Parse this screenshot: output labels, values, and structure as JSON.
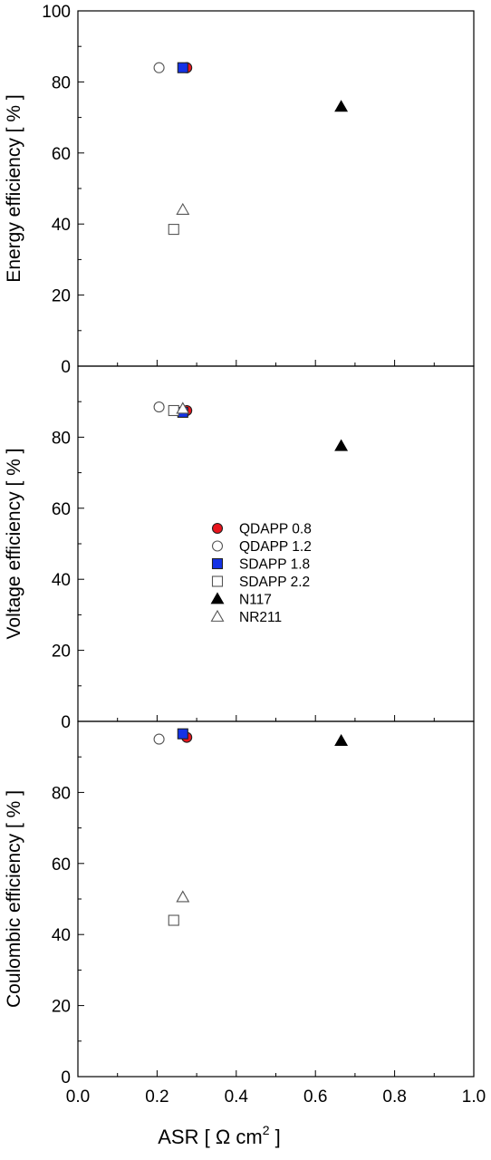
{
  "colors": {
    "qdapp08": "#e8141c",
    "sdapp18": "#1432e6",
    "black": "#000000",
    "hollow_stroke": "#555555"
  },
  "xaxis": {
    "label": "ASR [ Ω cm",
    "label_sup": "2",
    "label_end": " ]",
    "ticks": [
      "0.0",
      "0.2",
      "0.4",
      "0.6",
      "0.8",
      "1.0"
    ]
  },
  "legend": [
    {
      "name": "QDAPP 0.8",
      "marker": "circle",
      "filled": true,
      "color": "#e8141c"
    },
    {
      "name": "QDAPP 1.2",
      "marker": "circle",
      "filled": false,
      "color": "#555555"
    },
    {
      "name": "SDAPP 1.8",
      "marker": "square",
      "filled": true,
      "color": "#1432e6"
    },
    {
      "name": "SDAPP 2.2",
      "marker": "square",
      "filled": false,
      "color": "#555555"
    },
    {
      "name": "N117",
      "marker": "triangle",
      "filled": true,
      "color": "#000000"
    },
    {
      "name": "NR211",
      "marker": "triangle",
      "filled": false,
      "color": "#555555"
    }
  ],
  "chart_data": [
    {
      "type": "scatter",
      "ylabel": "Energy efficiency [ % ]",
      "xlim": [
        0,
        1.0
      ],
      "ylim": [
        0,
        100
      ],
      "yticks": [
        "0",
        "20",
        "40",
        "60",
        "80",
        "100"
      ],
      "series": [
        {
          "name": "QDAPP 0.8",
          "x": [
            0.275
          ],
          "y": [
            84
          ]
        },
        {
          "name": "QDAPP 1.2",
          "x": [
            0.205
          ],
          "y": [
            84
          ]
        },
        {
          "name": "SDAPP 1.8",
          "x": [
            0.265
          ],
          "y": [
            84
          ]
        },
        {
          "name": "SDAPP 2.2",
          "x": [
            0.242
          ],
          "y": [
            38.5
          ]
        },
        {
          "name": "N117",
          "x": [
            0.665
          ],
          "y": [
            73
          ]
        },
        {
          "name": "NR211",
          "x": [
            0.265
          ],
          "y": [
            44
          ]
        }
      ]
    },
    {
      "type": "scatter",
      "ylabel": "Voltage efficiency [ % ]",
      "xlim": [
        0,
        1.0
      ],
      "ylim": [
        0,
        100
      ],
      "yticks": [
        "0",
        "20",
        "40",
        "60",
        "80"
      ],
      "series": [
        {
          "name": "QDAPP 0.8",
          "x": [
            0.275
          ],
          "y": [
            87.5
          ]
        },
        {
          "name": "QDAPP 1.2",
          "x": [
            0.205
          ],
          "y": [
            88.5
          ]
        },
        {
          "name": "SDAPP 1.8",
          "x": [
            0.265
          ],
          "y": [
            87
          ]
        },
        {
          "name": "SDAPP 2.2",
          "x": [
            0.242
          ],
          "y": [
            87.5
          ]
        },
        {
          "name": "N117",
          "x": [
            0.665
          ],
          "y": [
            77.5
          ]
        },
        {
          "name": "NR211",
          "x": [
            0.265
          ],
          "y": [
            88
          ]
        }
      ]
    },
    {
      "type": "scatter",
      "ylabel": "Coulombic efficiency [ % ]",
      "xlim": [
        0,
        1.0
      ],
      "ylim": [
        0,
        100
      ],
      "yticks": [
        "0",
        "20",
        "40",
        "60",
        "80"
      ],
      "series": [
        {
          "name": "QDAPP 0.8",
          "x": [
            0.275
          ],
          "y": [
            95.5
          ]
        },
        {
          "name": "QDAPP 1.2",
          "x": [
            0.205
          ],
          "y": [
            95
          ]
        },
        {
          "name": "SDAPP 1.8",
          "x": [
            0.265
          ],
          "y": [
            96.5
          ]
        },
        {
          "name": "SDAPP 2.2",
          "x": [
            0.242
          ],
          "y": [
            44
          ]
        },
        {
          "name": "N117",
          "x": [
            0.665
          ],
          "y": [
            94.5
          ]
        },
        {
          "name": "NR211",
          "x": [
            0.265
          ],
          "y": [
            50.5
          ]
        }
      ]
    }
  ]
}
